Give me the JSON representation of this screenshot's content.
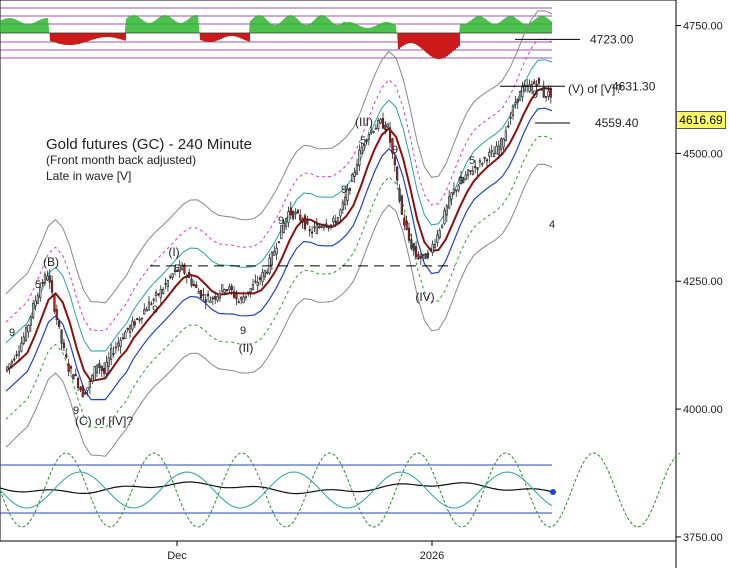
{
  "chart_data": [
    {
      "panel": "main",
      "type": "candlestick",
      "title": "Gold futures (GC) - 240 Minute",
      "subtitle_lines": [
        "(Front month back adjusted)",
        "Late in wave [V]"
      ],
      "y_ticks": [
        3750,
        4000,
        4250,
        4500,
        4750
      ],
      "y_tick_labels": [
        "3750.00",
        "4000.00",
        "4250.00",
        "4500.00",
        "4750.00"
      ],
      "ylim": [
        3742,
        4800
      ],
      "x_tick_labels": [
        "Dec",
        "2026"
      ],
      "last_price": "4616.69",
      "levels": [
        {
          "value": 4723.0,
          "label": "4723.00"
        },
        {
          "value": 4631.3,
          "label": "4631.30"
        },
        {
          "value": 4559.4,
          "label": "4559.40"
        }
      ],
      "wave_labels": [
        "(B)",
        "(C) of [IV]?",
        "(I)",
        "(II)",
        "(III)",
        "(IV)",
        "(V) of [V]?"
      ],
      "count_labels": [
        {
          "text": "5",
          "color": "#9a7a1a"
        },
        {
          "text": "9",
          "color": "#e03030"
        },
        {
          "text": "9",
          "color": "#2050d0"
        },
        {
          "text": "5",
          "color": "#9a7a1a"
        },
        {
          "text": "9",
          "color": "#e03030"
        },
        {
          "text": "9",
          "color": "#2050d0"
        },
        {
          "text": "9",
          "color": "#e03030"
        },
        {
          "text": "5",
          "color": "#9a7a1a"
        },
        {
          "text": "9",
          "color": "#e03030"
        },
        {
          "text": "9",
          "color": "#e03030"
        },
        {
          "text": "5",
          "color": "#9a7a1a"
        },
        {
          "text": "9",
          "color": "#e03030"
        },
        {
          "text": "4",
          "color": "#2050d0"
        },
        {
          "text": "9",
          "color": "#e03030"
        }
      ],
      "series_close": [
        4075,
        4095,
        4120,
        4150,
        4200,
        4240,
        4265,
        4200,
        4130,
        4080,
        4060,
        4030,
        4050,
        4090,
        4070,
        4110,
        4130,
        4150,
        4165,
        4180,
        4200,
        4215,
        4230,
        4250,
        4270,
        4275,
        4255,
        4235,
        4220,
        4215,
        4225,
        4240,
        4230,
        4210,
        4225,
        4240,
        4255,
        4275,
        4310,
        4350,
        4385,
        4380,
        4370,
        4345,
        4355,
        4365,
        4360,
        4375,
        4410,
        4450,
        4500,
        4535,
        4550,
        4560,
        4550,
        4470,
        4380,
        4330,
        4300,
        4295,
        4310,
        4340,
        4380,
        4420,
        4440,
        4455,
        4470,
        4480,
        4495,
        4500,
        4520,
        4560,
        4600,
        4625,
        4630,
        4640,
        4615,
        4617
      ],
      "colors": {
        "up": "#ffffff",
        "down": "#dd2222",
        "wick": "#222222",
        "ma": "#8b0f0f",
        "channel": "#1f44c8",
        "band_outer": "#888888",
        "band_mid_up": "#d43ad4",
        "band_mid_dn": "#2ea02e",
        "cyan": "#2aa0a0"
      }
    },
    {
      "panel": "top_oscillator",
      "type": "area",
      "colors": {
        "pos": "#2fb52f",
        "neg": "#cc1a1a",
        "line": "#7a1a9a"
      }
    },
    {
      "panel": "bottom_oscillator",
      "type": "line",
      "colors": {
        "cycle": "#2e8b2e",
        "blue": "#1f44c8",
        "black": "#111111",
        "cyan": "#2aa0a0"
      }
    }
  ]
}
